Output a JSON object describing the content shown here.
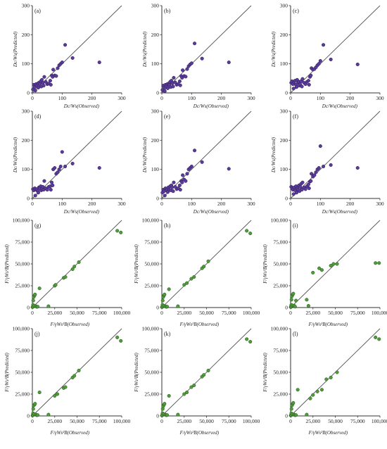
{
  "colors": {
    "purple": "#5b3b9a",
    "purple_edge": "#2a1a55",
    "green": "#4f9a3a",
    "green_edge": "#2a5a1e",
    "axis": "#333333",
    "line": "#555555"
  },
  "chart_data": [
    {
      "type": "scatter",
      "label": "(a)",
      "xlabel": "Dc/Ws(Observed)",
      "ylabel": "Dc/Ws(Predicted)",
      "xlim": [
        0,
        300
      ],
      "ylim": [
        0,
        300
      ],
      "xticks": [
        "0",
        "100",
        "200",
        "300"
      ],
      "yticks": [
        "0",
        "100",
        "200",
        "300"
      ],
      "reference_line": "y=x",
      "x": [
        2,
        5,
        8,
        10,
        12,
        15,
        18,
        20,
        22,
        25,
        28,
        30,
        32,
        35,
        38,
        40,
        45,
        50,
        55,
        60,
        62,
        65,
        68,
        70,
        75,
        80,
        85,
        90,
        95,
        100,
        110,
        135,
        225
      ],
      "y": [
        12,
        28,
        20,
        8,
        30,
        25,
        32,
        18,
        35,
        30,
        40,
        22,
        45,
        35,
        25,
        55,
        38,
        30,
        32,
        42,
        28,
        60,
        55,
        80,
        60,
        58,
        85,
        95,
        100,
        105,
        165,
        120,
        105
      ]
    },
    {
      "type": "scatter",
      "label": "(b)",
      "xlabel": "Dc/Ws(Observed)",
      "ylabel": "Dc/Ws(Predicted)",
      "xlim": [
        0,
        300
      ],
      "ylim": [
        0,
        300
      ],
      "xticks": [
        "0",
        "100",
        "200",
        "300"
      ],
      "yticks": [
        "0",
        "100",
        "200",
        "300"
      ],
      "reference_line": "y=x",
      "x": [
        2,
        5,
        8,
        10,
        12,
        15,
        18,
        20,
        22,
        25,
        28,
        30,
        32,
        35,
        38,
        40,
        45,
        50,
        55,
        60,
        62,
        65,
        68,
        70,
        75,
        80,
        85,
        90,
        95,
        100,
        110,
        135,
        225
      ],
      "y": [
        10,
        25,
        18,
        6,
        28,
        22,
        30,
        16,
        32,
        28,
        38,
        20,
        42,
        33,
        22,
        52,
        36,
        28,
        30,
        40,
        26,
        58,
        52,
        78,
        58,
        56,
        82,
        92,
        98,
        102,
        170,
        118,
        105
      ]
    },
    {
      "type": "scatter",
      "label": "(c)",
      "xlabel": "Dc/Ws(Observed)",
      "ylabel": "Dc/Ws(Predicted)",
      "xlim": [
        0,
        300
      ],
      "ylim": [
        0,
        300
      ],
      "xticks": [
        "0",
        "100",
        "200",
        "300"
      ],
      "yticks": [
        "0",
        "100",
        "200",
        "300"
      ],
      "reference_line": "y=x",
      "x": [
        2,
        5,
        8,
        10,
        12,
        15,
        18,
        20,
        22,
        25,
        28,
        30,
        32,
        35,
        38,
        40,
        45,
        50,
        55,
        60,
        62,
        65,
        68,
        70,
        75,
        80,
        85,
        90,
        95,
        100,
        110,
        135,
        225
      ],
      "y": [
        35,
        40,
        30,
        15,
        38,
        42,
        28,
        20,
        45,
        35,
        38,
        25,
        30,
        40,
        22,
        48,
        35,
        30,
        38,
        42,
        28,
        55,
        60,
        85,
        80,
        82,
        88,
        95,
        100,
        110,
        165,
        115,
        98
      ]
    },
    {
      "type": "scatter",
      "label": "(d)",
      "xlabel": "Dc/Ws(Observed)",
      "ylabel": "Dc/Ws(Predicted)",
      "xlim": [
        0,
        300
      ],
      "ylim": [
        0,
        300
      ],
      "xticks": [
        "0",
        "100",
        "200",
        "300"
      ],
      "yticks": [
        "0",
        "100",
        "200",
        "300"
      ],
      "reference_line": "y=x",
      "x": [
        2,
        5,
        8,
        10,
        12,
        15,
        18,
        20,
        22,
        25,
        28,
        30,
        32,
        35,
        38,
        40,
        45,
        50,
        55,
        60,
        62,
        65,
        68,
        70,
        75,
        80,
        85,
        90,
        95,
        100,
        110,
        135,
        225
      ],
      "y": [
        32,
        28,
        35,
        10,
        30,
        32,
        25,
        20,
        38,
        35,
        42,
        28,
        32,
        40,
        30,
        60,
        35,
        30,
        40,
        42,
        30,
        55,
        45,
        100,
        105,
        85,
        90,
        100,
        110,
        160,
        110,
        120,
        105
      ]
    },
    {
      "type": "scatter",
      "label": "(e)",
      "xlabel": "Dc/Ws(Observed)",
      "ylabel": "Dc/Ws(Predicted)",
      "xlim": [
        0,
        300
      ],
      "ylim": [
        0,
        300
      ],
      "xticks": [
        "0",
        "100",
        "200",
        "300"
      ],
      "yticks": [
        "0",
        "100",
        "200",
        "300"
      ],
      "reference_line": "y=x",
      "x": [
        2,
        5,
        8,
        10,
        12,
        15,
        18,
        20,
        22,
        25,
        28,
        30,
        32,
        35,
        38,
        40,
        45,
        50,
        55,
        60,
        62,
        65,
        68,
        70,
        75,
        80,
        85,
        90,
        95,
        100,
        110,
        135,
        225
      ],
      "y": [
        20,
        30,
        25,
        10,
        35,
        28,
        32,
        22,
        38,
        30,
        42,
        28,
        45,
        38,
        25,
        55,
        40,
        32,
        35,
        45,
        30,
        60,
        55,
        80,
        65,
        60,
        85,
        100,
        105,
        110,
        165,
        125,
        102
      ]
    },
    {
      "type": "scatter",
      "label": "(f)",
      "xlabel": "Dc/Ws(Observed)",
      "ylabel": "Dc/Ws(Predicted)",
      "xlim": [
        0,
        300
      ],
      "ylim": [
        0,
        300
      ],
      "xticks": [
        "0",
        "100",
        "200",
        "300"
      ],
      "yticks": [
        "0",
        "100",
        "200",
        "300"
      ],
      "reference_line": "y=x",
      "x": [
        2,
        5,
        8,
        10,
        12,
        15,
        18,
        20,
        22,
        25,
        28,
        30,
        32,
        35,
        38,
        40,
        45,
        50,
        55,
        60,
        62,
        65,
        68,
        70,
        75,
        80,
        85,
        90,
        95,
        100,
        110,
        135,
        225
      ],
      "y": [
        40,
        35,
        30,
        15,
        38,
        28,
        42,
        20,
        35,
        30,
        45,
        25,
        40,
        50,
        30,
        55,
        38,
        32,
        42,
        48,
        35,
        58,
        60,
        85,
        75,
        80,
        90,
        100,
        105,
        180,
        110,
        115,
        105
      ]
    },
    {
      "type": "scatter",
      "label": "(g)",
      "xlabel": "F/γWs²B(Observed)",
      "ylabel": "F/γWs²B(Predicted)",
      "xlim": [
        0,
        100000
      ],
      "ylim": [
        0,
        100000
      ],
      "xticks": [
        "0",
        "25,000",
        "50,000",
        "75,000",
        "100,000"
      ],
      "yticks": [
        "0",
        "25,000",
        "50,000",
        "75,000",
        "100,000"
      ],
      "reference_line": "y=x",
      "x": [
        200,
        500,
        800,
        1000,
        1500,
        2000,
        2500,
        3000,
        4000,
        5000,
        6000,
        8000,
        18000,
        25000,
        26000,
        35000,
        37000,
        45000,
        47000,
        52000,
        95000,
        99000
      ],
      "y": [
        500,
        1000,
        3000,
        8000,
        12000,
        2000,
        14000,
        15000,
        1500,
        800,
        1000,
        22000,
        1500,
        25000,
        26000,
        34000,
        35000,
        44000,
        47000,
        52000,
        88000,
        86000
      ]
    },
    {
      "type": "scatter",
      "label": "(h)",
      "xlabel": "F/γWs²B(Observed)",
      "ylabel": "F/γWs²B(Predicted)",
      "xlim": [
        0,
        100000
      ],
      "ylim": [
        0,
        100000
      ],
      "xticks": [
        "0",
        "25,000",
        "50,000",
        "75,000",
        "100,000"
      ],
      "yticks": [
        "0",
        "25,000",
        "50,000",
        "75,000",
        "100,000"
      ],
      "reference_line": "y=x",
      "x": [
        200,
        500,
        800,
        1000,
        1500,
        2000,
        2500,
        3000,
        4000,
        5000,
        6000,
        8000,
        18000,
        25000,
        28000,
        33000,
        36000,
        45000,
        47000,
        52000,
        95000,
        99000
      ],
      "y": [
        500,
        1000,
        3000,
        8000,
        12000,
        2000,
        14000,
        15000,
        1500,
        800,
        1000,
        21000,
        1500,
        26000,
        28000,
        33000,
        35000,
        45000,
        47000,
        53000,
        88000,
        85000
      ]
    },
    {
      "type": "scatter",
      "label": "(i)",
      "xlabel": "F/γWs²B(Observed)",
      "ylabel": "F/γWs²B(Predicted)",
      "xlim": [
        0,
        100000
      ],
      "ylim": [
        0,
        100000
      ],
      "xticks": [
        "0",
        "25,000",
        "50,000",
        "75,000",
        "100,000"
      ],
      "yticks": [
        "0",
        "25,000",
        "50,000",
        "75,000",
        "100,000"
      ],
      "reference_line": "y=x",
      "x": [
        200,
        500,
        800,
        1000,
        1500,
        2000,
        2500,
        3000,
        4000,
        5000,
        6000,
        18000,
        20000,
        25000,
        32000,
        35000,
        45000,
        48000,
        52000,
        95000,
        99000
      ],
      "y": [
        500,
        1500,
        3000,
        9000,
        13000,
        2500,
        15000,
        16000,
        2000,
        1000,
        8000,
        9000,
        2000,
        40000,
        45000,
        43000,
        48000,
        50000,
        50000,
        51000,
        51000
      ]
    },
    {
      "type": "scatter",
      "label": "(j)",
      "xlabel": "F/γWs²B(Observed)",
      "ylabel": "F/γWs²B(Predicted)",
      "xlim": [
        0,
        100000
      ],
      "ylim": [
        0,
        100000
      ],
      "xticks": [
        "0",
        "25,000",
        "50,000",
        "75,000",
        "100,000"
      ],
      "yticks": [
        "0",
        "25,000",
        "50,000",
        "75,000",
        "100,000"
      ],
      "reference_line": "y=x",
      "x": [
        200,
        500,
        800,
        1000,
        1500,
        2000,
        2500,
        3000,
        4000,
        5000,
        6000,
        8000,
        18000,
        25000,
        28000,
        35000,
        37000,
        45000,
        47000,
        52000,
        95000,
        99000
      ],
      "y": [
        500,
        1000,
        3000,
        8000,
        12000,
        2000,
        13000,
        14000,
        1500,
        800,
        1000,
        27000,
        1500,
        23000,
        25000,
        32000,
        33000,
        44000,
        46000,
        52000,
        90000,
        86000
      ]
    },
    {
      "type": "scatter",
      "label": "(k)",
      "xlabel": "F/γWs²B(Observed)",
      "ylabel": "F/γWs²B(Predicted)",
      "xlim": [
        0,
        100000
      ],
      "ylim": [
        0,
        100000
      ],
      "xticks": [
        "0",
        "25,000",
        "50,000",
        "75,000",
        "100,000"
      ],
      "yticks": [
        "0",
        "25,000",
        "50,000",
        "75,000",
        "100,000"
      ],
      "reference_line": "y=x",
      "x": [
        200,
        500,
        800,
        1000,
        1500,
        2000,
        2500,
        3000,
        4000,
        5000,
        6000,
        8000,
        18000,
        25000,
        28000,
        33000,
        36000,
        45000,
        47000,
        52000,
        95000,
        99000
      ],
      "y": [
        500,
        1000,
        3000,
        8000,
        11000,
        2000,
        13000,
        14000,
        1500,
        800,
        1000,
        23000,
        1500,
        25000,
        27000,
        33000,
        35000,
        45000,
        47000,
        52000,
        88000,
        85000
      ]
    },
    {
      "type": "scatter",
      "label": "(l)",
      "xlabel": "F/γWs²B(Observed)",
      "ylabel": "F/γWs²B(Predicted)",
      "xlim": [
        0,
        100000
      ],
      "ylim": [
        0,
        100000
      ],
      "xticks": [
        "0",
        "25,000",
        "50,000",
        "75,000",
        "100,000"
      ],
      "yticks": [
        "0",
        "25,000",
        "50,000",
        "75,000",
        "100,000"
      ],
      "reference_line": "y=x",
      "x": [
        200,
        500,
        800,
        1000,
        1500,
        2000,
        2500,
        3000,
        4000,
        5000,
        6000,
        8000,
        18000,
        22000,
        25000,
        30000,
        35000,
        40000,
        45000,
        52000,
        95000,
        99000
      ],
      "y": [
        500,
        1000,
        3000,
        8000,
        12000,
        2000,
        14000,
        15000,
        1500,
        800,
        1000,
        30000,
        1500,
        20000,
        24000,
        28000,
        30000,
        42000,
        44000,
        50000,
        90000,
        88000
      ]
    }
  ]
}
